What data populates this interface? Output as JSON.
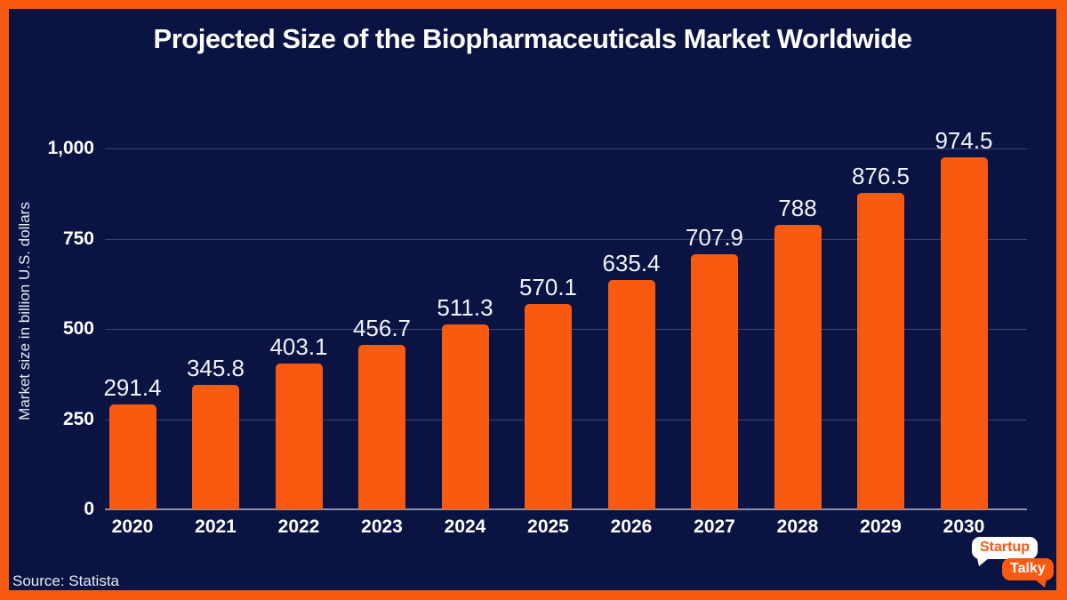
{
  "title": "Projected Size of the Biopharmaceuticals Market Worldwide",
  "source_note": "Source: Statista",
  "logo": {
    "top_text": "Startup",
    "bottom_text": "Talky"
  },
  "colors": {
    "accent_orange": "#F95A10",
    "background_navy": "#0A1342",
    "text_white": "#FFFFFF"
  },
  "chart_data": {
    "type": "bar",
    "title": "Projected Size of the Biopharmaceuticals Market Worldwide",
    "categories": [
      "2020",
      "2021",
      "2022",
      "2023",
      "2024",
      "2025",
      "2026",
      "2027",
      "2028",
      "2029",
      "2030"
    ],
    "values": [
      291.4,
      345.8,
      403.1,
      456.7,
      511.3,
      570.1,
      635.4,
      707.9,
      788,
      876.5,
      974.5
    ],
    "value_labels": [
      "291.4",
      "345.8",
      "403.1",
      "456.7",
      "511.3",
      "570.1",
      "635.4",
      "707.9",
      "788",
      "876.5",
      "974.5"
    ],
    "xlabel": "",
    "ylabel": "Market size in billion U.S. dollars",
    "ylim": [
      0,
      1000
    ],
    "y_ticks": [
      {
        "label": "1,000",
        "value": 1000
      },
      {
        "label": "750",
        "value": 750
      },
      {
        "label": "500",
        "value": 500
      },
      {
        "label": "250",
        "value": 250
      },
      {
        "label": "0",
        "value": 0
      }
    ],
    "grid": true,
    "legend": "none",
    "bar_color": "#F95A10"
  }
}
